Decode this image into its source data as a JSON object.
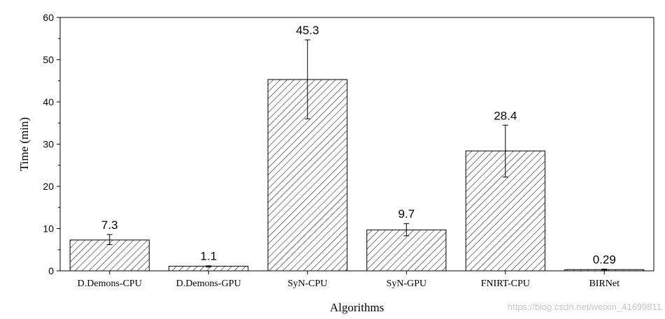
{
  "chart_data": {
    "type": "bar",
    "categories": [
      "D.Demons-CPU",
      "D.Demons-GPU",
      "SyN-CPU",
      "SyN-GPU",
      "FNIRT-CPU",
      "BIRNet"
    ],
    "values": [
      7.3,
      1.1,
      45.3,
      9.7,
      28.4,
      0.29
    ],
    "value_labels": [
      "7.3",
      "1.1",
      "45.3",
      "9.7",
      "28.4",
      "0.29"
    ],
    "error_low": [
      6.2,
      0.9,
      36.0,
      8.3,
      22.2,
      0.2
    ],
    "error_high": [
      8.6,
      1.2,
      54.7,
      11.2,
      34.5,
      0.4
    ],
    "xlabel": "Algorithms",
    "ylabel": "Time (min)",
    "ylim": [
      0,
      60
    ],
    "yticks": [
      0,
      10,
      20,
      30,
      40,
      50,
      60
    ],
    "grid": false,
    "bar_fill": "hatched",
    "colors": {
      "stroke": "#000000",
      "hatch": "#000000",
      "background": "#ffffff"
    }
  },
  "watermark": "https://blog.csdn.net/weixin_41699811"
}
